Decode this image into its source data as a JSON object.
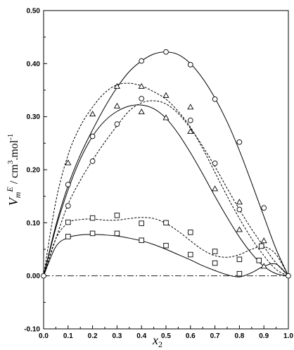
{
  "chart_data": {
    "type": "scatter",
    "title": "",
    "xlabel": "x",
    "xlabel_subscript": "2",
    "ylabel_parts": [
      "V",
      "m",
      "E",
      " / cm",
      "3",
      ".mol",
      "-1"
    ],
    "xlim": [
      0.0,
      1.0
    ],
    "ylim": [
      -0.1,
      0.5
    ],
    "x_ticks": [
      "0.0",
      "0.1",
      "0.2",
      "0.3",
      "0.4",
      "0.5",
      "0.6",
      "0.7",
      "0.8",
      "0.9",
      "1.0"
    ],
    "y_ticks": [
      "-0.10",
      "0.00",
      "0.10",
      "0.20",
      "0.30",
      "0.40",
      "0.50"
    ],
    "grid": false,
    "reference_line": {
      "y": 0.0,
      "style": "dash-dot"
    },
    "series": [
      {
        "marker": "circle",
        "line": "solid",
        "x": [
          0.0,
          0.1,
          0.2,
          0.4,
          0.5,
          0.6,
          0.7,
          0.8,
          0.9,
          1.0
        ],
        "y": [
          0.0,
          0.172,
          0.263,
          0.405,
          0.422,
          0.398,
          0.333,
          0.252,
          0.128,
          0.0
        ]
      },
      {
        "marker": "circle",
        "line": "dashed",
        "x": [
          0.1,
          0.2,
          0.3,
          0.4,
          0.6,
          0.7,
          0.8
        ],
        "y": [
          0.132,
          0.216,
          0.286,
          0.334,
          0.293,
          0.212,
          0.125
        ]
      },
      {
        "marker": "triangle",
        "line": "dashed",
        "x": [
          0.1,
          0.2,
          0.3,
          0.4,
          0.5,
          0.6,
          0.8,
          0.9
        ],
        "y": [
          0.213,
          0.305,
          0.357,
          0.357,
          0.34,
          0.318,
          0.139,
          0.066
        ]
      },
      {
        "marker": "triangle",
        "line": "solid",
        "x": [
          0.3,
          0.4,
          0.5,
          0.6,
          0.7,
          0.8,
          0.9
        ],
        "y": [
          0.32,
          0.309,
          0.298,
          0.272,
          0.164,
          0.087,
          0.018
        ]
      },
      {
        "marker": "square",
        "line": "dashed",
        "x": [
          0.1,
          0.2,
          0.3,
          0.4,
          0.5,
          0.6,
          0.7,
          0.8,
          0.89
        ],
        "y": [
          0.101,
          0.109,
          0.114,
          0.099,
          0.1,
          0.082,
          0.046,
          0.031,
          0.056
        ]
      },
      {
        "marker": "square",
        "line": "solid",
        "x": [
          0.1,
          0.2,
          0.3,
          0.4,
          0.5,
          0.6,
          0.7,
          0.8,
          0.88
        ],
        "y": [
          0.074,
          0.08,
          0.08,
          0.067,
          0.057,
          0.04,
          0.024,
          0.004,
          0.029
        ]
      }
    ],
    "fit_curves": [
      {
        "line": "solid",
        "x": [
          0.0,
          0.05,
          0.1,
          0.15,
          0.2,
          0.25,
          0.3,
          0.35,
          0.4,
          0.45,
          0.5,
          0.55,
          0.6,
          0.65,
          0.7,
          0.75,
          0.8,
          0.85,
          0.9,
          0.95,
          1.0
        ],
        "y": [
          0.0,
          0.095,
          0.17,
          0.228,
          0.275,
          0.318,
          0.355,
          0.385,
          0.405,
          0.418,
          0.422,
          0.417,
          0.4,
          0.372,
          0.335,
          0.29,
          0.236,
          0.175,
          0.112,
          0.05,
          0.0
        ]
      },
      {
        "line": "dashed",
        "x": [
          0.0,
          0.05,
          0.1,
          0.15,
          0.2,
          0.25,
          0.3,
          0.35,
          0.4,
          0.45,
          0.5,
          0.55,
          0.6,
          0.65,
          0.7,
          0.75,
          0.8,
          0.85,
          0.9,
          0.95,
          1.0
        ],
        "y": [
          0.0,
          0.07,
          0.135,
          0.18,
          0.218,
          0.252,
          0.283,
          0.311,
          0.326,
          0.33,
          0.324,
          0.306,
          0.278,
          0.244,
          0.206,
          0.165,
          0.125,
          0.088,
          0.055,
          0.024,
          0.0
        ]
      },
      {
        "line": "dashed",
        "x": [
          0.0,
          0.05,
          0.1,
          0.15,
          0.2,
          0.25,
          0.3,
          0.35,
          0.4,
          0.45,
          0.5,
          0.55,
          0.6,
          0.65,
          0.7,
          0.75,
          0.8,
          0.85,
          0.9,
          0.95,
          1.0
        ],
        "y": [
          0.0,
          0.14,
          0.228,
          0.282,
          0.318,
          0.345,
          0.36,
          0.363,
          0.358,
          0.347,
          0.333,
          0.31,
          0.28,
          0.24,
          0.195,
          0.15,
          0.108,
          0.07,
          0.038,
          0.012,
          0.0
        ]
      },
      {
        "line": "solid",
        "x": [
          0.0,
          0.05,
          0.1,
          0.15,
          0.2,
          0.25,
          0.3,
          0.35,
          0.4,
          0.45,
          0.5,
          0.55,
          0.6,
          0.65,
          0.7,
          0.75,
          0.8,
          0.85,
          0.9,
          0.95,
          1.0
        ],
        "y": [
          0.0,
          0.09,
          0.162,
          0.22,
          0.263,
          0.292,
          0.31,
          0.32,
          0.322,
          0.315,
          0.297,
          0.268,
          0.232,
          0.192,
          0.15,
          0.11,
          0.073,
          0.042,
          0.018,
          0.004,
          0.0
        ]
      },
      {
        "line": "dashed",
        "x": [
          0.0,
          0.05,
          0.1,
          0.15,
          0.2,
          0.25,
          0.3,
          0.35,
          0.4,
          0.45,
          0.5,
          0.55,
          0.6,
          0.65,
          0.7,
          0.75,
          0.8,
          0.85,
          0.9,
          0.95,
          1.0
        ],
        "y": [
          0.0,
          0.07,
          0.1,
          0.106,
          0.107,
          0.105,
          0.105,
          0.108,
          0.11,
          0.108,
          0.099,
          0.084,
          0.066,
          0.049,
          0.038,
          0.035,
          0.04,
          0.05,
          0.055,
          0.04,
          0.0
        ]
      },
      {
        "line": "solid",
        "x": [
          0.0,
          0.05,
          0.1,
          0.15,
          0.2,
          0.25,
          0.3,
          0.35,
          0.4,
          0.45,
          0.5,
          0.55,
          0.6,
          0.65,
          0.7,
          0.75,
          0.8,
          0.85,
          0.9,
          0.95,
          1.0
        ],
        "y": [
          0.0,
          0.055,
          0.072,
          0.077,
          0.078,
          0.077,
          0.075,
          0.071,
          0.066,
          0.059,
          0.05,
          0.04,
          0.03,
          0.019,
          0.01,
          0.002,
          -0.002,
          0.006,
          0.018,
          0.022,
          0.0
        ]
      }
    ]
  }
}
